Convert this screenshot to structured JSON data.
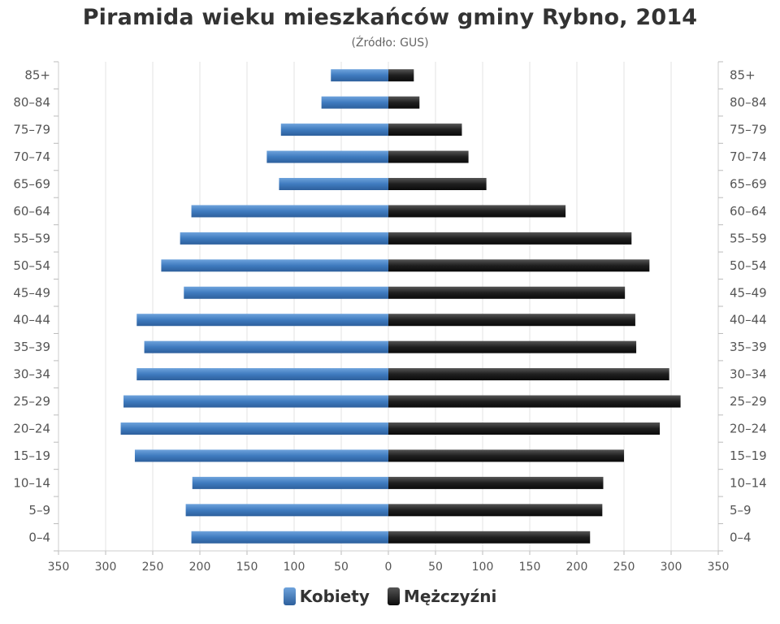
{
  "chart_data": {
    "type": "bar",
    "orientation": "horizontal",
    "title": "Piramida wieku mieszkańców gminy Rybno, 2014",
    "subtitle": "(Źródło: GUS)",
    "categories": [
      "0–4",
      "5–9",
      "10–14",
      "15–19",
      "20–24",
      "25–29",
      "30–34",
      "35–39",
      "40–44",
      "45–49",
      "50–54",
      "55–59",
      "60–64",
      "65–69",
      "70–74",
      "75–79",
      "80–84",
      "85+"
    ],
    "series": [
      {
        "name": "Kobiety",
        "color": "#4a84c4",
        "values": [
          209,
          215,
          208,
          269,
          284,
          281,
          267,
          259,
          267,
          217,
          241,
          221,
          209,
          116,
          129,
          114,
          71,
          61
        ]
      },
      {
        "name": "Mężczyźni",
        "color": "#222222",
        "values": [
          214,
          227,
          228,
          250,
          288,
          310,
          298,
          263,
          262,
          251,
          277,
          258,
          188,
          104,
          85,
          78,
          33,
          27
        ]
      }
    ],
    "xlim": [
      -350,
      350
    ],
    "xticks": [
      "350",
      "300",
      "250",
      "200",
      "150",
      "100",
      "50",
      "0",
      "50",
      "100",
      "150",
      "200",
      "250",
      "300",
      "350"
    ],
    "grid": true,
    "legend_position": "bottom-center"
  }
}
